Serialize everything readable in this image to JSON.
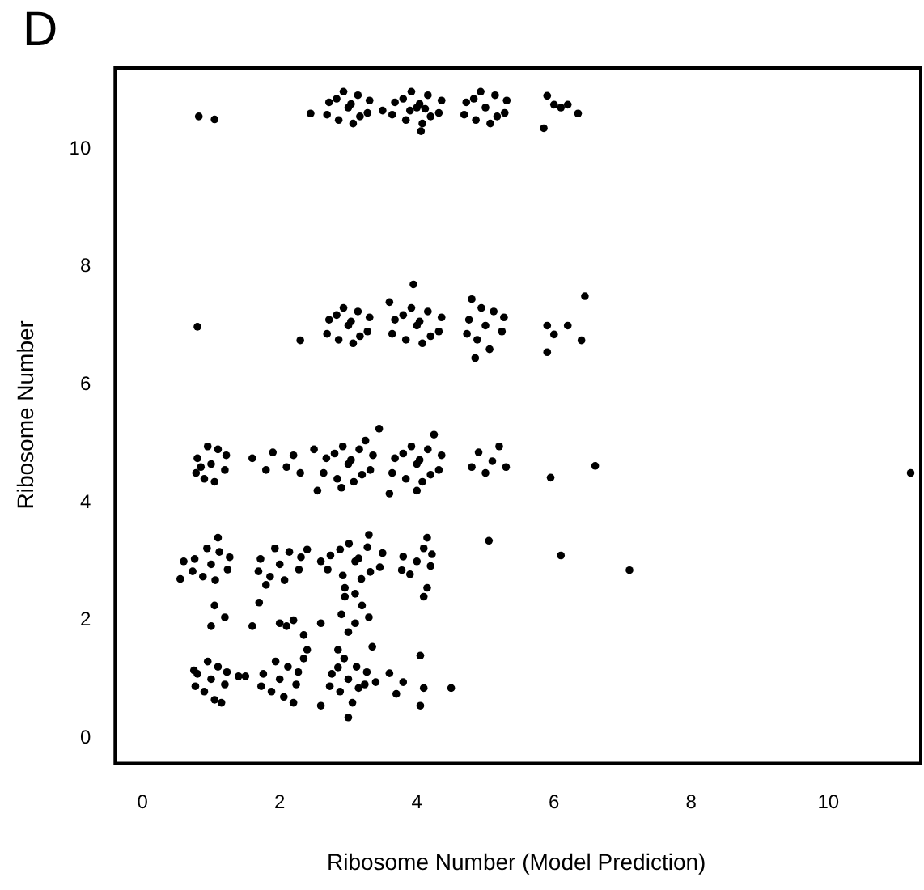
{
  "chart_data": {
    "type": "scatter",
    "xlabel": "Ribosome Number (Model Prediction)",
    "ylabel": "Ribosome Number",
    "annotations": [
      "D"
    ],
    "xlim": [
      -0.4,
      11.3
    ],
    "ylim": [
      -0.43,
      11.4
    ],
    "xticks": [
      0,
      2,
      4,
      6,
      8,
      10
    ],
    "yticks": [
      0,
      2,
      4,
      6,
      8,
      10
    ],
    "grid": false,
    "legend": false,
    "marker": "circle",
    "series": [
      {
        "color": "#000000",
        "x": [
          3,
          2.72,
          3.28,
          2.86,
          3.14,
          2.69,
          3.31,
          3.07,
          2.93,
          2.83,
          3.17,
          3.04,
          4,
          3.68,
          4.32,
          3.84,
          4.16,
          3.64,
          4.36,
          4.08,
          3.92,
          3.8,
          4.2,
          4.04,
          3.9,
          4.12,
          4.06,
          5,
          4.72,
          5.28,
          4.86,
          5.14,
          4.69,
          5.31,
          5.07,
          4.93,
          4.83,
          5.17,
          5.85,
          5.9,
          6.0,
          6.1,
          6.2,
          6.35,
          0.82,
          1.05,
          3.5,
          2.45,
          3,
          2.72,
          3.28,
          2.86,
          3.14,
          2.69,
          3.31,
          3.07,
          2.93,
          2.83,
          3.17,
          3.04,
          4,
          3.68,
          4.32,
          3.84,
          4.16,
          3.64,
          4.36,
          4.08,
          3.92,
          3.8,
          4.2,
          4.04,
          3.95,
          3.6,
          5,
          4.76,
          5.24,
          4.88,
          5.12,
          4.73,
          5.27,
          5.06,
          4.94,
          4.85,
          5.9,
          6.0,
          6.2,
          6.4,
          6.45,
          5.9,
          0.8,
          2.3,
          4.8,
          1,
          0.8,
          1.2,
          0.9,
          1.1,
          0.78,
          1.22,
          1.05,
          0.95,
          0.85,
          1.6,
          1.8,
          1.9,
          2.1,
          2.2,
          2.3,
          2.5,
          3,
          2.68,
          3.32,
          2.84,
          3.16,
          2.64,
          3.36,
          3.08,
          2.92,
          2.8,
          3.2,
          3.04,
          2.9,
          3.25,
          2.55,
          3.45,
          4,
          3.68,
          4.32,
          3.84,
          4.16,
          3.64,
          4.36,
          4.08,
          3.92,
          3.8,
          4.2,
          4.04,
          4.0,
          3.6,
          4.25,
          4.9,
          5.1,
          5.0,
          4.8,
          5.2,
          5.3,
          5.95,
          6.6,
          11.2,
          1,
          0.76,
          1.24,
          0.88,
          1.12,
          0.73,
          1.27,
          1.06,
          0.94,
          0.6,
          0.55,
          1.1,
          2,
          1.72,
          2.28,
          1.86,
          2.14,
          1.69,
          2.31,
          2.07,
          1.93,
          2.4,
          3.1,
          2.74,
          3.46,
          2.92,
          3.28,
          2.7,
          3.5,
          3.19,
          3.01,
          2.88,
          3.32,
          3.15,
          2.95,
          3.3,
          2.6,
          3.1,
          4,
          3.8,
          4.2,
          3.9,
          4.1,
          3.78,
          4.22,
          4.15,
          4.1,
          4.15,
          5.05,
          6.1,
          7.1,
          1.0,
          1.2,
          1.05,
          1.6,
          1.7,
          1.8,
          2.0,
          2.1,
          2.2,
          2.35,
          2.6,
          2.9,
          3.1,
          3.2,
          3.0,
          2.95,
          3.3,
          2.85,
          3.35,
          2.4,
          1,
          0.8,
          1.2,
          0.9,
          1.1,
          0.77,
          1.23,
          1.05,
          0.95,
          0.75,
          1.4,
          1.15,
          2,
          1.76,
          2.24,
          1.88,
          2.12,
          1.73,
          2.27,
          2.06,
          1.94,
          1.5,
          2.2,
          2.35,
          3,
          2.76,
          3.24,
          2.88,
          3.12,
          2.73,
          3.27,
          3.06,
          2.94,
          2.85,
          3.15,
          3.0,
          3.4,
          2.6,
          3.6,
          3.8,
          4.05,
          4.1,
          4.05,
          4.5,
          3.7
        ],
        "values": [
          10.7,
          10.79,
          10.61,
          10.49,
          10.91,
          10.58,
          10.82,
          10.43,
          10.97,
          10.85,
          10.55,
          10.76,
          10.7,
          10.79,
          10.61,
          10.49,
          10.91,
          10.58,
          10.82,
          10.43,
          10.97,
          10.85,
          10.55,
          10.76,
          10.65,
          10.68,
          10.3,
          10.7,
          10.79,
          10.61,
          10.49,
          10.91,
          10.58,
          10.82,
          10.43,
          10.97,
          10.85,
          10.55,
          10.35,
          10.9,
          10.75,
          10.7,
          10.75,
          10.6,
          10.55,
          10.5,
          10.65,
          10.6,
          7,
          7.1,
          6.9,
          6.76,
          7.24,
          6.86,
          7.14,
          6.7,
          7.3,
          7.18,
          6.82,
          7.07,
          7,
          7.1,
          6.9,
          6.76,
          7.24,
          6.86,
          7.14,
          6.7,
          7.3,
          7.18,
          6.82,
          7.07,
          7.7,
          7.4,
          7,
          7.1,
          6.9,
          6.76,
          7.24,
          6.86,
          7.14,
          6.6,
          7.3,
          6.45,
          7.0,
          6.85,
          7.0,
          6.75,
          7.5,
          6.55,
          6.98,
          6.75,
          7.45,
          4.65,
          4.75,
          4.55,
          4.4,
          4.9,
          4.5,
          4.8,
          4.35,
          4.95,
          4.6,
          4.75,
          4.55,
          4.85,
          4.6,
          4.8,
          4.5,
          4.9,
          4.65,
          4.75,
          4.55,
          4.4,
          4.9,
          4.5,
          4.8,
          4.35,
          4.95,
          4.83,
          4.47,
          4.72,
          4.25,
          5.05,
          4.2,
          5.25,
          4.65,
          4.75,
          4.55,
          4.4,
          4.9,
          4.5,
          4.8,
          4.35,
          4.95,
          4.83,
          4.47,
          4.72,
          4.2,
          4.15,
          5.15,
          4.85,
          4.7,
          4.5,
          4.6,
          4.95,
          4.6,
          4.42,
          4.62,
          4.5,
          2.95,
          3.04,
          2.86,
          2.74,
          3.16,
          2.83,
          3.07,
          2.68,
          3.22,
          3.0,
          2.7,
          3.4,
          2.95,
          3.04,
          2.86,
          2.74,
          3.16,
          2.83,
          3.07,
          2.68,
          3.22,
          3.2,
          3.0,
          3.1,
          2.9,
          2.76,
          3.24,
          2.86,
          3.14,
          2.7,
          3.3,
          3.2,
          2.82,
          3.05,
          2.55,
          3.45,
          3.0,
          2.45,
          3.0,
          3.08,
          2.92,
          2.78,
          3.22,
          2.85,
          3.12,
          3.4,
          2.4,
          2.55,
          3.35,
          3.1,
          2.85,
          1.9,
          2.05,
          2.25,
          1.9,
          2.3,
          2.6,
          1.95,
          1.9,
          2.0,
          1.75,
          1.95,
          2.1,
          1.95,
          2.25,
          1.8,
          2.4,
          2.05,
          1.5,
          1.55,
          1.5,
          1.0,
          1.09,
          0.91,
          0.79,
          1.21,
          0.88,
          1.12,
          0.65,
          1.3,
          1.15,
          1.05,
          0.6,
          1.0,
          1.09,
          0.91,
          0.79,
          1.21,
          0.88,
          1.12,
          0.7,
          1.3,
          1.05,
          0.6,
          1.35,
          1.0,
          1.09,
          0.91,
          0.79,
          1.21,
          0.88,
          1.12,
          0.6,
          1.35,
          1.2,
          0.85,
          0.35,
          0.95,
          0.55,
          1.1,
          0.95,
          1.4,
          0.85,
          0.55,
          0.85,
          0.75
        ]
      }
    ]
  }
}
